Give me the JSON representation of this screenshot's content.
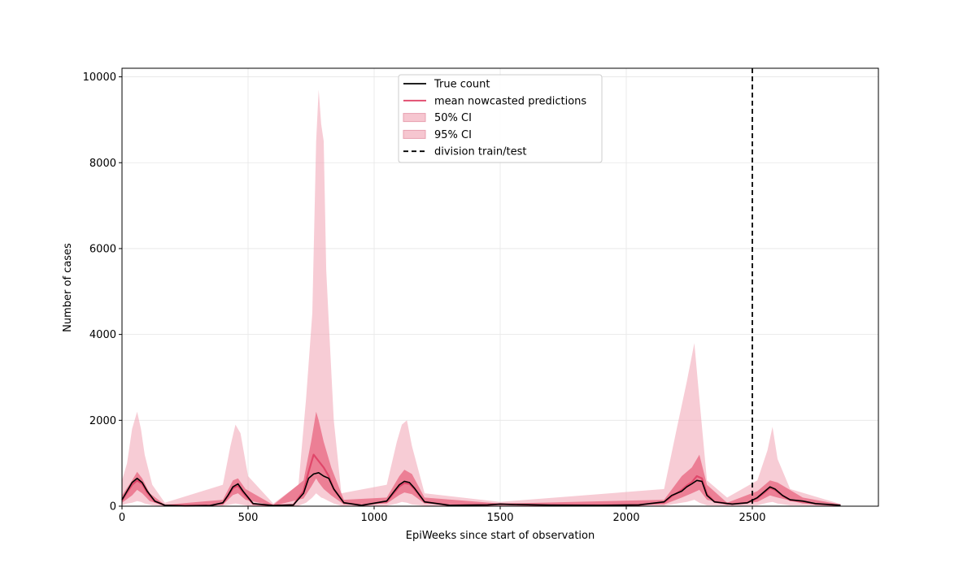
{
  "chart_data": {
    "type": "line",
    "title": "",
    "xlabel": "EpiWeeks since start of observation",
    "ylabel": "Number of cases",
    "xlim": [
      0,
      3000
    ],
    "ylim": [
      0,
      10200
    ],
    "x_ticks": [
      0,
      500,
      1000,
      1500,
      2000,
      2500
    ],
    "y_ticks": [
      0,
      2000,
      4000,
      6000,
      8000,
      10000
    ],
    "grid": true,
    "legend_position": "top-center",
    "division_train_test_x": 2500,
    "series": [
      {
        "name": "True count",
        "color": "#000000",
        "style": "solid",
        "x": [
          0,
          20,
          40,
          60,
          80,
          100,
          130,
          170,
          250,
          350,
          400,
          420,
          440,
          460,
          480,
          520,
          600,
          680,
          720,
          740,
          760,
          780,
          800,
          820,
          840,
          880,
          950,
          1050,
          1080,
          1100,
          1120,
          1140,
          1160,
          1200,
          1300,
          1450,
          1500,
          1550,
          1700,
          1900,
          2050,
          2150,
          2180,
          2200,
          2220,
          2240,
          2260,
          2280,
          2300,
          2320,
          2350,
          2420,
          2480,
          2520,
          2550,
          2570,
          2590,
          2620,
          2650,
          2700,
          2750,
          2850
        ],
        "y": [
          150,
          350,
          550,
          650,
          550,
          350,
          120,
          20,
          10,
          15,
          80,
          250,
          450,
          520,
          350,
          60,
          15,
          30,
          300,
          650,
          750,
          780,
          700,
          650,
          400,
          80,
          20,
          120,
          350,
          500,
          580,
          550,
          420,
          100,
          20,
          30,
          50,
          40,
          25,
          20,
          30,
          100,
          250,
          300,
          350,
          450,
          520,
          600,
          580,
          250,
          100,
          50,
          80,
          200,
          350,
          450,
          400,
          250,
          150,
          120,
          60,
          20
        ]
      },
      {
        "name": "mean nowcasted predictions",
        "color": "#e0476a",
        "style": "solid",
        "x": [
          0,
          20,
          40,
          60,
          80,
          100,
          130,
          170,
          250,
          350,
          400,
          420,
          440,
          460,
          480,
          520,
          600,
          680,
          720,
          740,
          760,
          780,
          800,
          820,
          840,
          880,
          950,
          1050,
          1080,
          1100,
          1120,
          1140,
          1160,
          1200,
          1300,
          1450,
          1500,
          1550,
          1700,
          1900,
          2050,
          2150,
          2180,
          2200,
          2220,
          2240,
          2260,
          2280,
          2300,
          2320,
          2350,
          2420,
          2480,
          2520,
          2550,
          2570,
          2590,
          2620,
          2650,
          2700,
          2750,
          2850
        ],
        "y": [
          140,
          320,
          500,
          600,
          520,
          320,
          110,
          20,
          10,
          15,
          70,
          230,
          420,
          480,
          320,
          55,
          15,
          30,
          350,
          800,
          1200,
          1050,
          900,
          700,
          400,
          80,
          20,
          110,
          320,
          460,
          540,
          520,
          400,
          100,
          20,
          30,
          50,
          40,
          25,
          20,
          30,
          90,
          230,
          300,
          380,
          480,
          560,
          700,
          650,
          280,
          100,
          50,
          80,
          190,
          330,
          430,
          380,
          240,
          140,
          110,
          55,
          20
        ]
      }
    ],
    "ci_50": {
      "name": "50% CI",
      "color": "#e8667f",
      "x": [
        0,
        40,
        60,
        80,
        110,
        170,
        400,
        440,
        460,
        490,
        600,
        720,
        750,
        770,
        780,
        800,
        830,
        880,
        1050,
        1100,
        1120,
        1150,
        1200,
        1500,
        2150,
        2220,
        2260,
        2290,
        2320,
        2400,
        2520,
        2570,
        2600,
        2700,
        2850
      ],
      "lower": [
        80,
        250,
        380,
        300,
        120,
        10,
        30,
        260,
        300,
        150,
        10,
        180,
        450,
        650,
        550,
        400,
        250,
        40,
        60,
        260,
        320,
        280,
        60,
        20,
        40,
        200,
        300,
        380,
        150,
        30,
        100,
        250,
        200,
        60,
        10
      ],
      "upper": [
        250,
        600,
        800,
        650,
        300,
        30,
        150,
        600,
        650,
        400,
        30,
        600,
        1500,
        2200,
        2000,
        1500,
        900,
        150,
        200,
        700,
        850,
        750,
        200,
        60,
        150,
        700,
        900,
        1200,
        500,
        80,
        350,
        600,
        550,
        200,
        40
      ]
    },
    "ci_95": {
      "name": "95% CI",
      "color": "#f0a3b3",
      "x": [
        0,
        20,
        40,
        60,
        75,
        90,
        120,
        170,
        400,
        430,
        450,
        470,
        500,
        600,
        700,
        730,
        755,
        770,
        780,
        790,
        800,
        810,
        820,
        840,
        870,
        1050,
        1090,
        1110,
        1130,
        1150,
        1200,
        1500,
        2150,
        2200,
        2240,
        2270,
        2290,
        2320,
        2400,
        2520,
        2560,
        2580,
        2600,
        2650,
        2850
      ],
      "lower": [
        20,
        60,
        80,
        120,
        100,
        60,
        20,
        0,
        10,
        40,
        60,
        40,
        10,
        0,
        10,
        80,
        200,
        300,
        250,
        200,
        180,
        150,
        120,
        60,
        10,
        10,
        60,
        100,
        80,
        40,
        10,
        5,
        10,
        60,
        100,
        150,
        80,
        20,
        10,
        20,
        80,
        100,
        60,
        20,
        5
      ],
      "upper": [
        600,
        1000,
        1800,
        2200,
        1800,
        1200,
        500,
        80,
        500,
        1400,
        1900,
        1700,
        700,
        60,
        500,
        2500,
        4500,
        8500,
        9700,
        8900,
        8500,
        5500,
        4300,
        2000,
        300,
        500,
        1500,
        1900,
        2000,
        1400,
        300,
        100,
        400,
        1800,
        2900,
        3800,
        2500,
        600,
        200,
        600,
        1300,
        1850,
        1100,
        400,
        50
      ]
    }
  },
  "legend": [
    {
      "label": "True count",
      "kind": "line",
      "color": "#000000"
    },
    {
      "label": "mean nowcasted predictions",
      "kind": "line",
      "color": "#e0476a"
    },
    {
      "label": "50% CI",
      "kind": "patch",
      "color": "#f6c6d0"
    },
    {
      "label": "95% CI",
      "kind": "patch",
      "color": "#f6c6d0"
    },
    {
      "label": "division train/test",
      "kind": "dashed",
      "color": "#000000"
    }
  ]
}
